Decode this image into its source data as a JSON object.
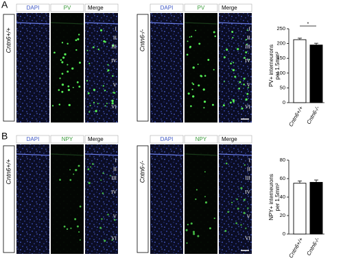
{
  "panels": [
    {
      "label": "A",
      "headers": [
        "DAPI",
        "PV",
        "Merge"
      ],
      "genotypes": [
        "Cntn6+/+",
        "Cntn6-/-"
      ],
      "layers": [
        "I",
        "II",
        "III",
        "IV",
        "V",
        "VI"
      ]
    },
    {
      "label": "B",
      "headers": [
        "DAPI",
        "NPY",
        "Merge"
      ],
      "genotypes": [
        "Cntn6+/+",
        "Cntn6-/-"
      ],
      "layers": [
        "I",
        "II",
        "III",
        "IV",
        "V",
        "VI"
      ]
    }
  ],
  "chart_data": [
    {
      "type": "bar",
      "ylabel": [
        "PV+ interneurons",
        "per 1.5mm²"
      ],
      "categories": [
        "Cntn6+/+",
        "Cntn6-/-"
      ],
      "values": [
        213,
        195
      ],
      "errors": [
        5,
        6
      ],
      "colors": [
        "#ffffff",
        "#000000"
      ],
      "ylim": [
        0,
        250
      ],
      "yticks": [
        0,
        50,
        100,
        150,
        200,
        250
      ],
      "annotation": "*"
    },
    {
      "type": "bar",
      "ylabel": [
        "NPY+ interneurons",
        "per 1.5mm²"
      ],
      "categories": [
        "Cntn6+/+",
        "Cntn6-/-"
      ],
      "values": [
        55,
        56
      ],
      "errors": [
        2.5,
        2.5
      ],
      "colors": [
        "#ffffff",
        "#000000"
      ],
      "ylim": [
        0,
        80
      ],
      "yticks": [
        0,
        20,
        40,
        60,
        80
      ]
    }
  ]
}
